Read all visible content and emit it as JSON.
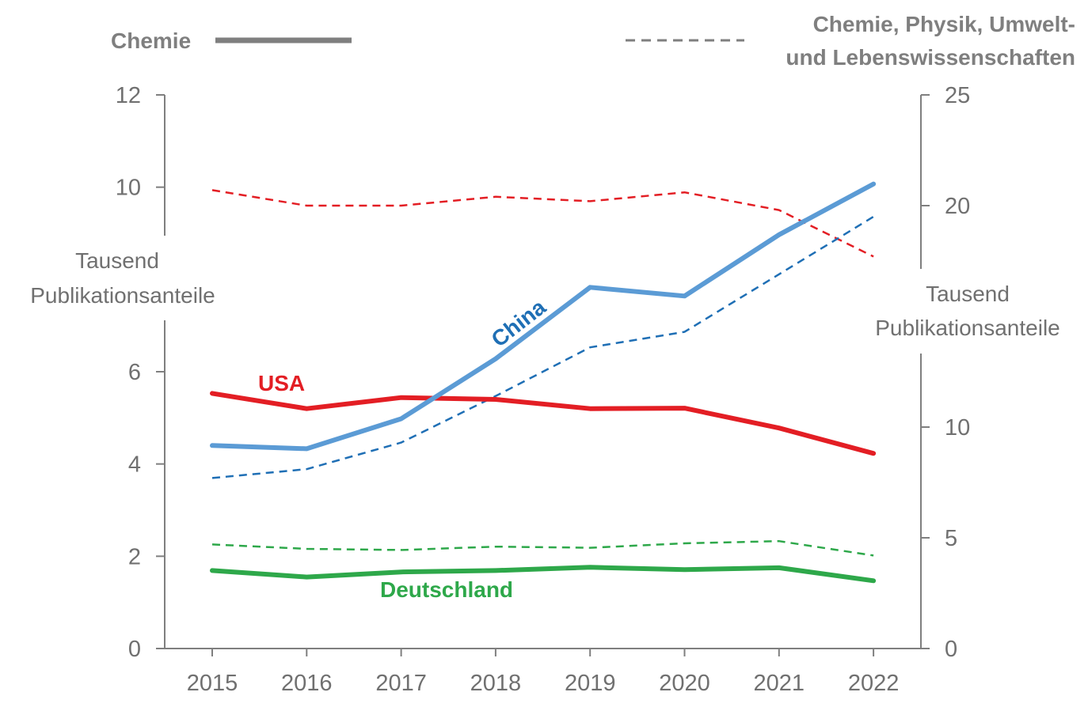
{
  "chart_data": {
    "type": "line",
    "x": [
      2015,
      2016,
      2017,
      2018,
      2019,
      2020,
      2021,
      2022
    ],
    "legend": {
      "solid_label": "Chemie",
      "dashed_label_line1": "Chemie, Physik, Umwelt-",
      "dashed_label_line2": "und  Lebenswissenschaften"
    },
    "left_axis": {
      "label_line1": "Tausend",
      "label_line2": "Publikationsanteile",
      "ylim": [
        0,
        12
      ],
      "ticks": [
        0,
        2,
        4,
        6,
        10,
        12
      ]
    },
    "right_axis": {
      "label_line1": "Tausend",
      "label_line2": "Publikationsanteile",
      "ylim": [
        0,
        25
      ],
      "ticks": [
        0,
        5,
        10,
        20,
        25
      ]
    },
    "series": [
      {
        "name": "USA",
        "axis": "left",
        "style": "solid",
        "color": "#e31e24",
        "values": [
          5.53,
          5.2,
          5.44,
          5.4,
          5.2,
          5.21,
          4.78,
          4.23
        ]
      },
      {
        "name": "China",
        "axis": "left",
        "style": "solid",
        "color": "#5b9bd5",
        "values": [
          4.4,
          4.33,
          4.98,
          6.28,
          7.83,
          7.64,
          8.97,
          10.07
        ]
      },
      {
        "name": "Deutschland",
        "axis": "left",
        "style": "solid",
        "color": "#2ea84a",
        "values": [
          1.69,
          1.55,
          1.66,
          1.69,
          1.76,
          1.71,
          1.75,
          1.47
        ]
      },
      {
        "name": "USA",
        "axis": "right",
        "style": "dashed",
        "color": "#e31e24",
        "values": [
          20.7,
          20.0,
          20.0,
          20.4,
          20.2,
          20.6,
          19.8,
          17.7
        ]
      },
      {
        "name": "China",
        "axis": "right",
        "style": "dashed",
        "color": "#1f6fb5",
        "values": [
          7.7,
          8.1,
          9.3,
          11.4,
          13.6,
          14.3,
          16.9,
          19.5
        ]
      },
      {
        "name": "Deutschland",
        "axis": "right",
        "style": "dashed",
        "color": "#2ea84a",
        "values": [
          4.7,
          4.5,
          4.45,
          4.6,
          4.55,
          4.75,
          4.85,
          4.2
        ]
      }
    ],
    "annotations": {
      "usa": "USA",
      "china": "China",
      "deutschland": "Deutschland"
    }
  }
}
